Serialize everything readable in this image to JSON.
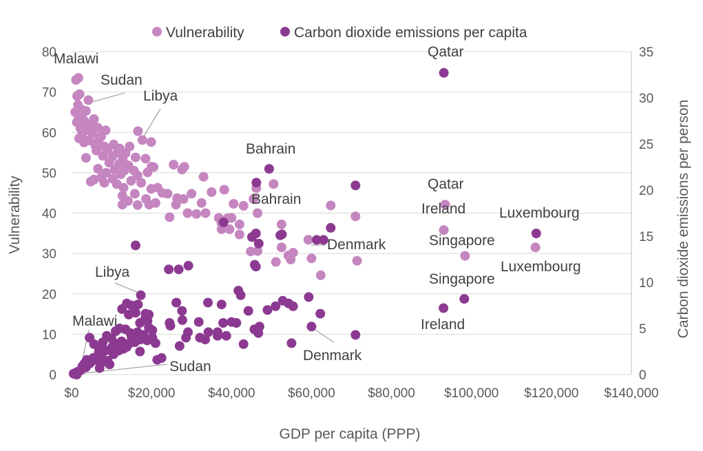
{
  "chart_data": {
    "type": "scatter",
    "legend_position": "top",
    "grid": true,
    "x_axis": {
      "label": "GDP per capita (PPP)",
      "range": [
        0,
        140000
      ],
      "tick_labels": [
        "$0",
        "$20,000",
        "$40,000",
        "$60,000",
        "$80,000",
        "$100,000",
        "$120,000",
        "$140,000"
      ]
    },
    "y_axis_left": {
      "label": "Vulnerability",
      "range": [
        0,
        80
      ],
      "tick_labels": [
        "0",
        "10",
        "20",
        "30",
        "40",
        "50",
        "60",
        "70",
        "80"
      ]
    },
    "y_axis_right": {
      "label": "Carbon dioxide emissions per person",
      "range": [
        0,
        35
      ],
      "tick_labels": [
        "0",
        "5",
        "10",
        "15",
        "20",
        "25",
        "30",
        "35"
      ]
    },
    "series": [
      {
        "name": "Vulnerability",
        "axis": "left",
        "color": "#c586c0",
        "points": [
          [
            1100,
            73.0
          ],
          [
            1700,
            73.5
          ],
          [
            2000,
            69.5
          ],
          [
            1400,
            69.0
          ],
          [
            4200,
            68.0
          ],
          [
            1600,
            66.8
          ],
          [
            2800,
            65.5
          ],
          [
            900,
            65.0
          ],
          [
            3600,
            65.3
          ],
          [
            2500,
            64.0
          ],
          [
            1800,
            63.5
          ],
          [
            3200,
            62.8
          ],
          [
            1300,
            62.5
          ],
          [
            5600,
            63.3
          ],
          [
            4800,
            61.8
          ],
          [
            6500,
            61.2
          ],
          [
            2200,
            61.0
          ],
          [
            3900,
            60.5
          ],
          [
            8500,
            60.5
          ],
          [
            2600,
            59.5
          ],
          [
            5200,
            59.8
          ],
          [
            7400,
            59.0
          ],
          [
            1900,
            58.5
          ],
          [
            4400,
            58.0
          ],
          [
            6800,
            58.2
          ],
          [
            3100,
            57.5
          ],
          [
            10500,
            57.0
          ],
          [
            5900,
            56.8
          ],
          [
            8200,
            56.5
          ],
          [
            12000,
            56.0
          ],
          [
            14500,
            56.5
          ],
          [
            9100,
            55.8
          ],
          [
            11500,
            55.0
          ],
          [
            6200,
            55.5
          ],
          [
            13500,
            54.8
          ],
          [
            7800,
            54.2
          ],
          [
            10200,
            54.0
          ],
          [
            16000,
            53.8
          ],
          [
            3600,
            53.7
          ],
          [
            12800,
            53.3
          ],
          [
            18500,
            53.5
          ],
          [
            9400,
            52.5
          ],
          [
            11900,
            52.2
          ],
          [
            14200,
            51.8
          ],
          [
            20000,
            51.5
          ],
          [
            6600,
            51.0
          ],
          [
            10800,
            50.8
          ],
          [
            13200,
            50.6
          ],
          [
            15600,
            50.5
          ],
          [
            8700,
            50.0
          ],
          [
            19000,
            50.1
          ],
          [
            12300,
            49.6
          ],
          [
            16500,
            49.3
          ],
          [
            7400,
            48.8
          ],
          [
            10300,
            48.5
          ],
          [
            14900,
            48.0
          ],
          [
            5600,
            48.3
          ],
          [
            4800,
            47.8
          ],
          [
            8200,
            47.5
          ],
          [
            11300,
            47.2
          ],
          [
            17400,
            47.5
          ],
          [
            13000,
            46.3
          ],
          [
            19900,
            46.0
          ],
          [
            21500,
            46.3
          ],
          [
            22700,
            45.0
          ],
          [
            15800,
            44.8
          ],
          [
            12700,
            44.3
          ],
          [
            24000,
            44.8
          ],
          [
            18600,
            43.5
          ],
          [
            26400,
            43.7
          ],
          [
            14100,
            43.0
          ],
          [
            21000,
            42.5
          ],
          [
            28000,
            43.5
          ],
          [
            30000,
            44.8
          ],
          [
            12700,
            42.1
          ],
          [
            16500,
            42.0
          ],
          [
            19400,
            42.1
          ],
          [
            26100,
            42.1
          ],
          [
            32500,
            42.5
          ],
          [
            35000,
            45.2
          ],
          [
            16600,
            60.3
          ],
          [
            17700,
            58.1
          ],
          [
            19900,
            57.6
          ],
          [
            20500,
            51.4
          ],
          [
            25500,
            52.0
          ],
          [
            28200,
            51.5
          ],
          [
            27600,
            50.8
          ],
          [
            33000,
            49.0
          ],
          [
            38200,
            45.8
          ],
          [
            40500,
            42.3
          ],
          [
            43000,
            41.8
          ],
          [
            45500,
            43.5
          ],
          [
            46200,
            46.2
          ],
          [
            50500,
            47.2
          ],
          [
            46500,
            40.0
          ],
          [
            29000,
            40.0
          ],
          [
            31200,
            39.8
          ],
          [
            36800,
            38.8
          ],
          [
            39000,
            38.7
          ],
          [
            40000,
            38.8
          ],
          [
            42000,
            37.2
          ],
          [
            37500,
            37.5
          ],
          [
            24500,
            39.0
          ],
          [
            33500,
            40.0
          ],
          [
            37500,
            36.0
          ],
          [
            39500,
            36.0
          ],
          [
            42000,
            34.7
          ],
          [
            44800,
            30.5
          ],
          [
            46500,
            30.6
          ],
          [
            52500,
            37.2
          ],
          [
            52500,
            31.5
          ],
          [
            54200,
            29.5
          ],
          [
            54800,
            28.5
          ],
          [
            55400,
            30.2
          ],
          [
            51100,
            27.9
          ],
          [
            59200,
            33.4
          ],
          [
            60000,
            28.8
          ],
          [
            62300,
            24.6
          ],
          [
            64800,
            41.9
          ],
          [
            71000,
            39.2
          ],
          [
            71400,
            28.2
          ],
          [
            93100,
            35.8
          ],
          [
            93400,
            42.1
          ],
          [
            98400,
            29.4
          ],
          [
            116000,
            31.5
          ]
        ]
      },
      {
        "name": "Carbon dioxide emissions per capita",
        "axis": "right",
        "color": "#8c3a91",
        "points": [
          [
            500,
            0.1
          ],
          [
            800,
            0.05
          ],
          [
            1100,
            0.2
          ],
          [
            1500,
            0.3
          ],
          [
            1300,
            0.0
          ],
          [
            2000,
            0.4
          ],
          [
            2300,
            0.5
          ],
          [
            2700,
            0.9
          ],
          [
            3200,
            1.2
          ],
          [
            3600,
            0.8
          ],
          [
            3800,
            1.6
          ],
          [
            4500,
            1.2
          ],
          [
            5000,
            1.4
          ],
          [
            5400,
            1.8
          ],
          [
            6200,
            1.6
          ],
          [
            6800,
            2.4
          ],
          [
            7400,
            1.9
          ],
          [
            8000,
            1.4
          ],
          [
            8500,
            2.6
          ],
          [
            9000,
            1.5
          ],
          [
            9600,
            2.7
          ],
          [
            10200,
            3.0
          ],
          [
            10500,
            2.2
          ],
          [
            11300,
            3.3
          ],
          [
            11800,
            2.6
          ],
          [
            12500,
            3.6
          ],
          [
            13000,
            2.8
          ],
          [
            13800,
            3.0
          ],
          [
            14500,
            3.4
          ],
          [
            15000,
            4.1
          ],
          [
            15800,
            3.5
          ],
          [
            16500,
            4.6
          ],
          [
            17200,
            3.8
          ],
          [
            18000,
            4.3
          ],
          [
            18900,
            3.7
          ],
          [
            19300,
            5.1
          ],
          [
            20200,
            4.8
          ],
          [
            21000,
            3.4
          ],
          [
            21400,
            1.6
          ],
          [
            22500,
            1.8
          ],
          [
            4500,
            4.0
          ],
          [
            5600,
            3.3
          ],
          [
            6800,
            2.9
          ],
          [
            7800,
            3.5
          ],
          [
            8800,
            4.2
          ],
          [
            10000,
            3.9
          ],
          [
            11000,
            4.7
          ],
          [
            12000,
            5.0
          ],
          [
            13500,
            4.9
          ],
          [
            14700,
            4.5
          ],
          [
            16000,
            6.7
          ],
          [
            17100,
            5.6
          ],
          [
            18400,
            6.1
          ],
          [
            19300,
            6.5
          ],
          [
            12600,
            7.1
          ],
          [
            13800,
            7.7
          ],
          [
            15000,
            7.5
          ],
          [
            16600,
            7.6
          ],
          [
            18500,
            6.6
          ],
          [
            19000,
            5.8
          ],
          [
            14300,
            6.5
          ],
          [
            15900,
            7.4
          ],
          [
            20200,
            4.0
          ],
          [
            17100,
            2.5
          ],
          [
            16000,
            14.0
          ],
          [
            9500,
            1.1
          ],
          [
            7000,
            0.7
          ],
          [
            24300,
            11.4
          ],
          [
            26800,
            11.4
          ],
          [
            29200,
            11.8
          ],
          [
            17300,
            8.6
          ],
          [
            24500,
            5.6
          ],
          [
            26200,
            7.8
          ],
          [
            27600,
            6.9
          ],
          [
            27700,
            5.9
          ],
          [
            28600,
            4.0
          ],
          [
            29100,
            4.6
          ],
          [
            31800,
            5.7
          ],
          [
            32100,
            4.0
          ],
          [
            33400,
            3.8
          ],
          [
            34200,
            4.6
          ],
          [
            34100,
            7.8
          ],
          [
            27000,
            3.1
          ],
          [
            24700,
            5.3
          ],
          [
            36500,
            4.2
          ],
          [
            37500,
            7.6
          ],
          [
            38700,
            4.2
          ],
          [
            40000,
            5.7
          ],
          [
            41200,
            5.6
          ],
          [
            43000,
            3.3
          ],
          [
            45700,
            4.9
          ],
          [
            45800,
            11.9
          ],
          [
            45100,
            14.9
          ],
          [
            46100,
            15.3
          ],
          [
            46200,
            20.8
          ],
          [
            46700,
            4.5
          ],
          [
            47000,
            5.2
          ],
          [
            49000,
            7.0
          ],
          [
            51000,
            7.4
          ],
          [
            52800,
            8.0
          ],
          [
            52200,
            15.1
          ],
          [
            54300,
            7.7
          ],
          [
            55000,
            3.4
          ],
          [
            55400,
            7.4
          ],
          [
            59300,
            8.4
          ],
          [
            60000,
            5.2
          ],
          [
            62200,
            6.6
          ],
          [
            63000,
            14.6
          ],
          [
            64800,
            15.9
          ],
          [
            71000,
            20.5
          ],
          [
            71000,
            4.3
          ],
          [
            93000,
            7.2
          ],
          [
            93100,
            32.7
          ],
          [
            98200,
            8.2
          ],
          [
            116200,
            15.3
          ],
          [
            38000,
            16.5
          ],
          [
            41700,
            9.1
          ],
          [
            42300,
            8.6
          ],
          [
            44200,
            6.9
          ],
          [
            37900,
            5.6
          ],
          [
            46800,
            14.2
          ],
          [
            49400,
            22.3
          ],
          [
            52600,
            15.2
          ],
          [
            46100,
            11.7
          ],
          [
            61300,
            14.6
          ],
          [
            36500,
            4.6
          ]
        ]
      }
    ],
    "annotations": {
      "malawi_top": "Malawi",
      "sudan_top": "Sudan",
      "libya_top": "Libya",
      "bahrain_top": "Bahrain",
      "qatar_top": "Qatar",
      "bahrain_mid": "Bahrain",
      "qatar_mid": "Qatar",
      "ireland_mid": "Ireland",
      "luxembourg_mid": "Luxembourg",
      "singapore_mid": "Singapore",
      "denmark_mid": "Denmark",
      "luxembourg_low": "Luxembourg",
      "libya_low": "Libya",
      "singapore_low": "Singapore",
      "malawi_low": "Malawi",
      "ireland_low": "Ireland",
      "denmark_low": "Denmark",
      "sudan_low": "Sudan"
    }
  }
}
